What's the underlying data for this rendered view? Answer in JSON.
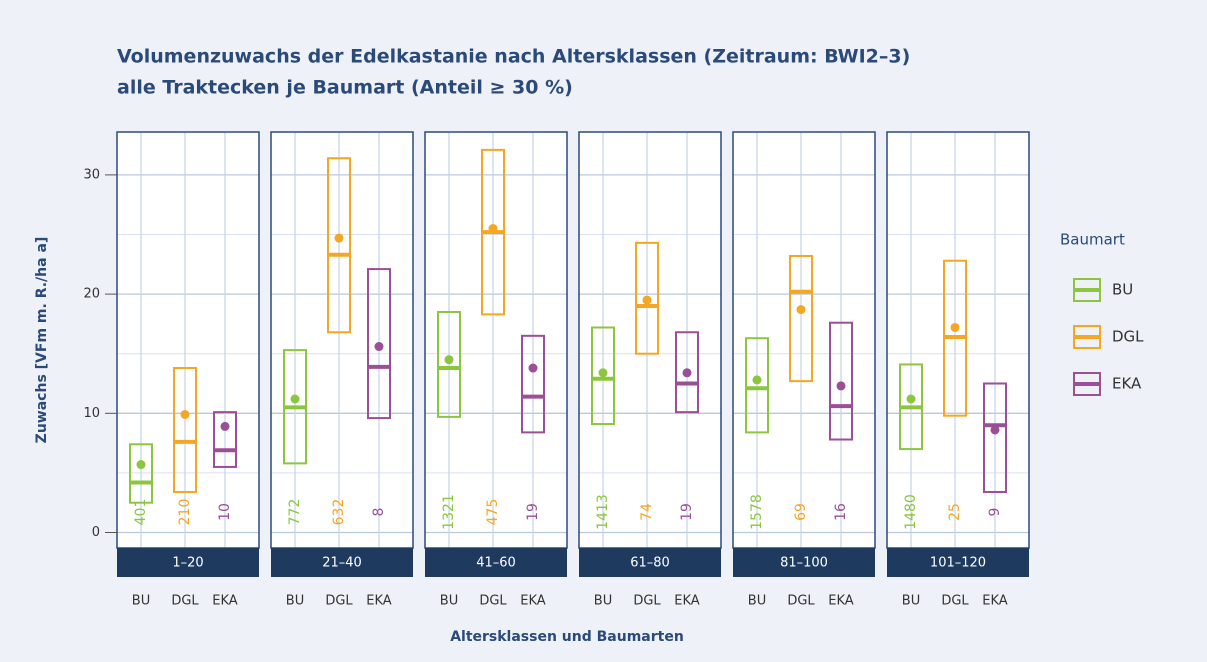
{
  "chart_data": {
    "type": "crossbar",
    "title": "Volumenzuwachs der Edelkastanie nach Altersklassen (Zeitraum: BWI2–3)",
    "subtitle": "alle Traktecken je Baumart (Anteil ≥ 30 %)",
    "y_label": "Zuwachs [VFm m. R./ha a]",
    "x_label": "Altersklassen und Baumarten",
    "legend_title": "Baumart",
    "legend_position": "right",
    "facets": [
      "1–20",
      "21–40",
      "41–60",
      "61–80",
      "81–100",
      "101–120"
    ],
    "categories": [
      "BU",
      "DGL",
      "EKA"
    ],
    "ylim": [
      -1.3,
      33.6
    ],
    "yticks": [
      0,
      10,
      20,
      30
    ],
    "minor_yticks": [
      5,
      15,
      25
    ],
    "grid": true,
    "series": [
      {
        "name": "BU",
        "color": "#8cc63f",
        "upper": [
          7.4,
          15.3,
          18.5,
          17.2,
          16.3,
          14.1
        ],
        "lower": [
          2.5,
          5.8,
          9.7,
          9.1,
          8.4,
          7.0
        ],
        "median": [
          4.2,
          10.5,
          13.8,
          12.9,
          12.1,
          10.5
        ],
        "mean": [
          5.7,
          11.2,
          14.5,
          13.4,
          12.8,
          11.2
        ],
        "n": [
          401,
          772,
          1321,
          1413,
          1578,
          1480
        ]
      },
      {
        "name": "DGL",
        "color": "#f5a623",
        "upper": [
          13.8,
          31.4,
          32.1,
          24.3,
          23.2,
          22.8
        ],
        "lower": [
          3.4,
          16.8,
          18.3,
          15.0,
          12.7,
          9.8
        ],
        "median": [
          7.6,
          23.3,
          25.2,
          19.0,
          20.2,
          16.4
        ],
        "mean": [
          9.9,
          24.7,
          25.5,
          19.5,
          18.7,
          17.2
        ],
        "n": [
          210,
          632,
          475,
          74,
          69,
          25
        ]
      },
      {
        "name": "EKA",
        "color": "#9b4f96",
        "upper": [
          10.1,
          22.1,
          16.5,
          16.8,
          17.6,
          12.5
        ],
        "lower": [
          5.5,
          9.6,
          8.4,
          10.1,
          7.8,
          3.4
        ],
        "median": [
          6.9,
          13.9,
          11.4,
          12.5,
          10.6,
          9.0
        ],
        "mean": [
          8.9,
          15.6,
          13.8,
          13.4,
          12.3,
          8.6
        ],
        "n": [
          10,
          8,
          19,
          19,
          16,
          9
        ]
      }
    ]
  }
}
